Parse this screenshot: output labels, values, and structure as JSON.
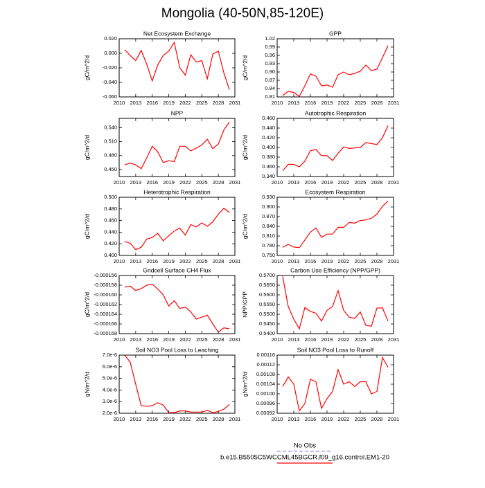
{
  "title": "Mongolia (40-50N,85-120E)",
  "legend": [
    {
      "name": "No Obs",
      "color": "#9999ff",
      "dashed": true
    },
    {
      "name": "b.e15.B5505C5WCCML45BGCR.f09_g16.control.EM1-20",
      "color": "#ff0000",
      "dashed": false
    }
  ],
  "chart_data": [
    {
      "type": "line",
      "title": "Net Ecosystem Exchange",
      "ylabel": "gC/m^2/d",
      "color": "#ff0000",
      "x": [
        2011,
        2012,
        2013,
        2014,
        2015,
        2016,
        2017,
        2018,
        2019,
        2020,
        2021,
        2022,
        2023,
        2024,
        2025,
        2026,
        2027,
        2028,
        2029,
        2030
      ],
      "values": [
        0.005,
        -0.003,
        -0.01,
        0.004,
        -0.015,
        -0.038,
        -0.016,
        -0.003,
        0.003,
        0.015,
        -0.02,
        -0.03,
        -0.002,
        -0.012,
        -0.01,
        -0.035,
        -0.001,
        0.003,
        -0.027,
        -0.05
      ],
      "xlim": [
        2010,
        2031
      ],
      "xticks": [
        2010,
        2013,
        2016,
        2019,
        2022,
        2025,
        2028,
        2031
      ],
      "ylim": [
        -0.06,
        0.02
      ],
      "yticks": [
        {
          "value": -0.06,
          "label": "-0.060"
        },
        {
          "value": -0.04,
          "label": "-0.040"
        },
        {
          "value": -0.02,
          "label": "-0.020"
        },
        {
          "value": 0,
          "label": "0.000"
        },
        {
          "value": 0.02,
          "label": "0.020"
        }
      ]
    },
    {
      "type": "line",
      "title": "GPP",
      "ylabel": "gC/m^2/d",
      "color": "#ff0000",
      "x": [
        2011,
        2012,
        2013,
        2014,
        2015,
        2016,
        2017,
        2018,
        2019,
        2020,
        2021,
        2022,
        2023,
        2024,
        2025,
        2026,
        2027,
        2028,
        2029,
        2030
      ],
      "values": [
        0.815,
        0.83,
        0.826,
        0.812,
        0.85,
        0.893,
        0.885,
        0.85,
        0.853,
        0.845,
        0.89,
        0.9,
        0.89,
        0.895,
        0.903,
        0.925,
        0.905,
        0.91,
        0.952,
        0.995
      ],
      "xlim": [
        2010,
        2031
      ],
      "xticks": [
        2010,
        2013,
        2016,
        2019,
        2022,
        2025,
        2028,
        2031
      ],
      "ylim": [
        0.81,
        1.02
      ],
      "yticks": [
        0.81,
        0.84,
        0.87,
        {
          "value": 0.9,
          "label": "0.90"
        },
        0.93,
        0.96,
        0.99,
        1.02
      ]
    },
    {
      "type": "line",
      "title": "NPP",
      "ylabel": "gC/m^2/d",
      "color": "#ff0000",
      "x": [
        2011,
        2012,
        2013,
        2014,
        2015,
        2016,
        2017,
        2018,
        2019,
        2020,
        2021,
        2022,
        2023,
        2024,
        2025,
        2026,
        2027,
        2028,
        2029,
        2030
      ],
      "values": [
        0.46,
        0.464,
        0.46,
        0.452,
        0.475,
        0.5,
        0.488,
        0.465,
        0.469,
        0.467,
        0.5,
        0.5,
        0.49,
        0.496,
        0.503,
        0.515,
        0.495,
        0.505,
        0.535,
        0.552
      ],
      "xlim": [
        2010,
        2031
      ],
      "xticks": [
        2010,
        2013,
        2016,
        2019,
        2022,
        2025,
        2028,
        2031
      ],
      "ylim": [
        0.435,
        0.56
      ],
      "yticks": [
        {
          "value": 0.45,
          "label": "0.450"
        },
        {
          "value": 0.48,
          "label": "0.480"
        },
        {
          "value": 0.51,
          "label": "0.510"
        },
        {
          "value": 0.54,
          "label": "0.540"
        }
      ]
    },
    {
      "type": "line",
      "title": "Autotrophic Respiration",
      "ylabel": "gC/m^2/d",
      "color": "#ff0000",
      "x": [
        2011,
        2012,
        2013,
        2014,
        2015,
        2016,
        2017,
        2018,
        2019,
        2020,
        2021,
        2022,
        2023,
        2024,
        2025,
        2026,
        2027,
        2028,
        2029,
        2030
      ],
      "values": [
        0.352,
        0.365,
        0.365,
        0.36,
        0.372,
        0.393,
        0.396,
        0.383,
        0.383,
        0.373,
        0.388,
        0.401,
        0.398,
        0.399,
        0.4,
        0.41,
        0.408,
        0.406,
        0.42,
        0.445
      ],
      "xlim": [
        2010,
        2031
      ],
      "xticks": [
        2010,
        2013,
        2016,
        2019,
        2022,
        2025,
        2028,
        2031
      ],
      "ylim": [
        0.34,
        0.46
      ],
      "yticks": [
        {
          "value": 0.34,
          "label": "0.340"
        },
        {
          "value": 0.36,
          "label": "0.360"
        },
        {
          "value": 0.38,
          "label": "0.380"
        },
        {
          "value": 0.4,
          "label": "0.400"
        },
        {
          "value": 0.42,
          "label": "0.420"
        },
        {
          "value": 0.44,
          "label": "0.440"
        },
        {
          "value": 0.46,
          "label": "0.460"
        }
      ]
    },
    {
      "type": "line",
      "title": "Heterotrophic Respiration",
      "ylabel": "gC/m^2/d",
      "color": "#ff0000",
      "x": [
        2011,
        2012,
        2013,
        2014,
        2015,
        2016,
        2017,
        2018,
        2019,
        2020,
        2021,
        2022,
        2023,
        2024,
        2025,
        2026,
        2027,
        2028,
        2029,
        2030
      ],
      "values": [
        0.424,
        0.421,
        0.41,
        0.414,
        0.428,
        0.431,
        0.438,
        0.425,
        0.434,
        0.442,
        0.447,
        0.435,
        0.453,
        0.449,
        0.456,
        0.45,
        0.458,
        0.471,
        0.481,
        0.474
      ],
      "xlim": [
        2010,
        2031
      ],
      "xticks": [
        2010,
        2013,
        2016,
        2019,
        2022,
        2025,
        2028,
        2031
      ],
      "ylim": [
        0.4,
        0.5
      ],
      "yticks": [
        {
          "value": 0.4,
          "label": "0.400"
        },
        {
          "value": 0.42,
          "label": "0.420"
        },
        {
          "value": 0.44,
          "label": "0.440"
        },
        {
          "value": 0.46,
          "label": "0.460"
        },
        {
          "value": 0.48,
          "label": "0.480"
        },
        {
          "value": 0.5,
          "label": "0.500"
        }
      ]
    },
    {
      "type": "line",
      "title": "Ecosystem Respiration",
      "ylabel": "gC/m^2/d",
      "color": "#ff0000",
      "x": [
        2011,
        2012,
        2013,
        2014,
        2015,
        2016,
        2017,
        2018,
        2019,
        2020,
        2021,
        2022,
        2023,
        2024,
        2025,
        2026,
        2027,
        2028,
        2029,
        2030
      ],
      "values": [
        0.775,
        0.784,
        0.776,
        0.774,
        0.798,
        0.822,
        0.835,
        0.806,
        0.816,
        0.816,
        0.837,
        0.837,
        0.852,
        0.85,
        0.858,
        0.86,
        0.865,
        0.878,
        0.902,
        0.918
      ],
      "xlim": [
        2010,
        2031
      ],
      "xticks": [
        2010,
        2013,
        2016,
        2019,
        2022,
        2025,
        2028,
        2031
      ],
      "ylim": [
        0.75,
        0.93
      ],
      "yticks": [
        {
          "value": 0.75,
          "label": "0.750"
        },
        {
          "value": 0.78,
          "label": "0.780"
        },
        {
          "value": 0.81,
          "label": "0.810"
        },
        {
          "value": 0.84,
          "label": "0.840"
        },
        {
          "value": 0.87,
          "label": "0.870"
        },
        {
          "value": 0.9,
          "label": "0.900"
        },
        {
          "value": 0.93,
          "label": "0.930"
        }
      ]
    },
    {
      "type": "line",
      "title": "Gridcell Surface CH4 Flux",
      "ylabel": "gC/m^2/d",
      "color": "#ff0000",
      "x": [
        2011,
        2012,
        2013,
        2014,
        2015,
        2016,
        2017,
        2018,
        2019,
        2020,
        2021,
        2022,
        2023,
        2024,
        2025,
        2026,
        2027,
        2028,
        2029,
        2030
      ],
      "values": [
        -0.0001584,
        -0.0001582,
        -0.0001591,
        -0.0001587,
        -0.000158,
        -0.0001578,
        -0.0001588,
        -0.00016,
        -0.0001623,
        -0.0001612,
        -0.0001628,
        -0.0001625,
        -0.0001635,
        -0.000165,
        -0.0001646,
        -0.0001642,
        -0.000166,
        -0.0001677,
        -0.0001668,
        -0.000167
      ],
      "xlim": [
        2010,
        2031
      ],
      "xticks": [
        2010,
        2013,
        2016,
        2019,
        2022,
        2025,
        2028,
        2031
      ],
      "ylim": [
        -0.000168,
        -0.000156
      ],
      "yticks": [
        {
          "value": -0.000168,
          "label": "-0.000168"
        },
        {
          "value": -0.000166,
          "label": "-0.000166"
        },
        {
          "value": -0.000164,
          "label": "-0.000164"
        },
        {
          "value": -0.000162,
          "label": "-0.000162"
        },
        {
          "value": -0.00016,
          "label": "-0.000160"
        },
        {
          "value": -0.000158,
          "label": "-0.000158"
        },
        {
          "value": -0.000156,
          "label": "-0.000156"
        }
      ]
    },
    {
      "type": "line",
      "title": "Carbon Use Efficiency (NPP/GPP)",
      "ylabel": "NPP/GPP",
      "color": "#ff0000",
      "x": [
        2011,
        2012,
        2013,
        2014,
        2015,
        2016,
        2017,
        2018,
        2019,
        2020,
        2021,
        2022,
        2023,
        2024,
        2025,
        2026,
        2027,
        2028,
        2029,
        2030
      ],
      "values": [
        0.5695,
        0.554,
        0.5475,
        0.5425,
        0.5535,
        0.5515,
        0.5505,
        0.5465,
        0.552,
        0.554,
        0.5622,
        0.552,
        0.5485,
        0.5478,
        0.5512,
        0.5443,
        0.5438,
        0.5532,
        0.5533,
        0.5465
      ],
      "xlim": [
        2010,
        2031
      ],
      "xticks": [
        2010,
        2013,
        2016,
        2019,
        2022,
        2025,
        2028,
        2031
      ],
      "ylim": [
        0.54,
        0.57
      ],
      "yticks": [
        {
          "value": 0.54,
          "label": "0.5400"
        },
        {
          "value": 0.545,
          "label": "0.5450"
        },
        {
          "value": 0.55,
          "label": "0.5500"
        },
        {
          "value": 0.555,
          "label": "0.5550"
        },
        {
          "value": 0.56,
          "label": "0.5600"
        },
        {
          "value": 0.565,
          "label": "0.5650"
        },
        {
          "value": 0.57,
          "label": "0.5700"
        }
      ]
    },
    {
      "type": "line",
      "title": "Soil NO3 Pool Loss to Leaching",
      "ylabel": "gN/m^2/d",
      "color": "#ff0000",
      "x": [
        2011,
        2012,
        2013,
        2014,
        2015,
        2016,
        2017,
        2018,
        2019,
        2020,
        2021,
        2022,
        2023,
        2024,
        2025,
        2026,
        2027,
        2028,
        2029,
        2030
      ],
      "values": [
        7e-06,
        6.4e-06,
        4.5e-06,
        2.65e-06,
        2.6e-06,
        2.65e-06,
        2.9e-06,
        2.7e-06,
        2.05e-06,
        2.05e-06,
        2.2e-06,
        2.2e-06,
        2.1e-06,
        2.1e-06,
        2.1e-06,
        2.25e-06,
        2.05e-06,
        2.15e-06,
        2.35e-06,
        2.75e-06
      ],
      "xlim": [
        2010,
        2031
      ],
      "xticks": [
        2010,
        2013,
        2016,
        2019,
        2022,
        2025,
        2028,
        2031
      ],
      "ylim": [
        2e-06,
        7e-06
      ],
      "yticks": [
        {
          "value": 2e-06,
          "label": "2.0e-6"
        },
        {
          "value": 3e-06,
          "label": "3.0e-6"
        },
        {
          "value": 4e-06,
          "label": "4.0e-6"
        },
        {
          "value": 5e-06,
          "label": "5.0e-6"
        },
        {
          "value": 6e-06,
          "label": "6.0e-6"
        },
        {
          "value": 7e-06,
          "label": "7.0e-6"
        }
      ]
    },
    {
      "type": "line",
      "title": "Soil NO3 Pool Loss to Runoff",
      "ylabel": "gN/m^2/d",
      "color": "#ff0000",
      "x": [
        2011,
        2012,
        2013,
        2014,
        2015,
        2016,
        2017,
        2018,
        2019,
        2020,
        2021,
        2022,
        2023,
        2024,
        2025,
        2026,
        2027,
        2028,
        2029,
        2030
      ],
      "values": [
        0.00103,
        0.00107,
        0.00104,
        0.00093,
        0.00096,
        0.00106,
        0.00105,
        0.00094,
        0.00098,
        0.00101,
        0.0011,
        0.00104,
        0.00105,
        0.00103,
        0.00105,
        0.00105,
        0.001,
        0.00101,
        0.00115,
        0.00111
      ],
      "xlim": [
        2010,
        2031
      ],
      "xticks": [
        2010,
        2013,
        2016,
        2019,
        2022,
        2025,
        2028,
        2031
      ],
      "ylim": [
        0.00092,
        0.00116
      ],
      "yticks": [
        {
          "value": 0.00092,
          "label": "0.00092"
        },
        {
          "value": 0.00096,
          "label": "0.00096"
        },
        {
          "value": 0.001,
          "label": "0.00100"
        },
        {
          "value": 0.00104,
          "label": "0.00104"
        },
        {
          "value": 0.00108,
          "label": "0.00108"
        },
        {
          "value": 0.00112,
          "label": "0.00112"
        },
        {
          "value": 0.00116,
          "label": "0.00116"
        }
      ]
    }
  ]
}
